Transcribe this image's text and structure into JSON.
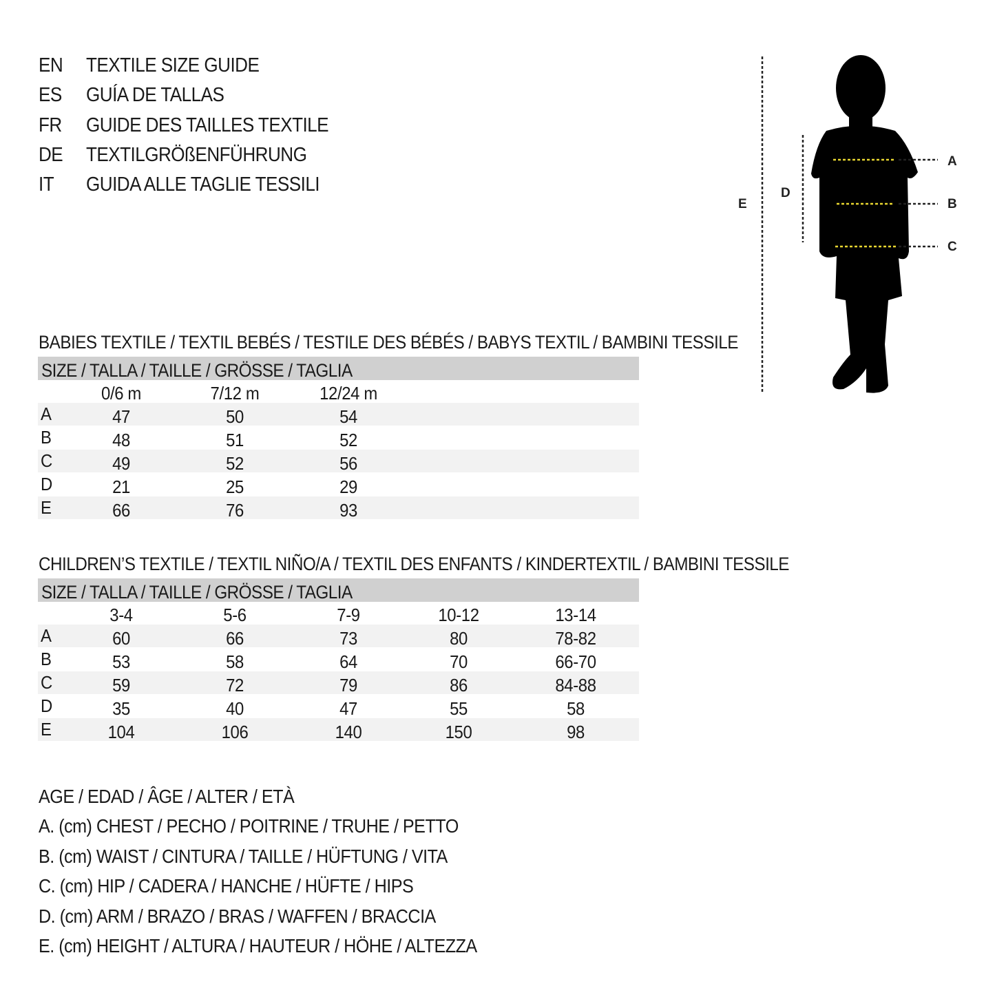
{
  "titles": [
    {
      "code": "EN",
      "text": "TEXTILE SIZE GUIDE"
    },
    {
      "code": "ES",
      "text": "GUÍA DE TALLAS"
    },
    {
      "code": "FR",
      "text": "GUIDE DES TAILLES TEXTILE"
    },
    {
      "code": "DE",
      "text": "TEXTILGRÖßENFÜHRUNG"
    },
    {
      "code": "IT",
      "text": "GUIDA ALLE TAGLIE TESSILI"
    }
  ],
  "diagram": {
    "labels": {
      "A": "A",
      "B": "B",
      "C": "C",
      "D": "D",
      "E": "E"
    },
    "colors": {
      "silhouette": "#000000",
      "measure_line": "#e8d630"
    }
  },
  "babies": {
    "heading": "BABIES TEXTILE / TEXTIL BEBÉS / TESTILE DES BÉBÉS / BABYS TEXTIL / BAMBINI TESSILE",
    "size_header": "SIZE / TALLA / TAILLE / GRÖSSE / TAGLIA",
    "columns": [
      "0/6 m",
      "7/12 m",
      "12/24 m"
    ],
    "rows": [
      {
        "label": "A",
        "values": [
          "47",
          "50",
          "54"
        ]
      },
      {
        "label": "B",
        "values": [
          "48",
          "51",
          "52"
        ]
      },
      {
        "label": "C",
        "values": [
          "49",
          "52",
          "56"
        ]
      },
      {
        "label": "D",
        "values": [
          "21",
          "25",
          "29"
        ]
      },
      {
        "label": "E",
        "values": [
          "66",
          "76",
          "93"
        ]
      }
    ]
  },
  "children": {
    "heading": "CHILDREN’S TEXTILE / TEXTIL NIÑO/A / TEXTIL DES ENFANTS / KINDERTEXTIL / BAMBINI TESSILE",
    "size_header": "SIZE / TALLA / TAILLE / GRÖSSE / TAGLIA",
    "columns": [
      "3-4",
      "5-6",
      "7-9",
      "10-12",
      "13-14"
    ],
    "rows": [
      {
        "label": "A",
        "values": [
          "60",
          "66",
          "73",
          "80",
          "78-82"
        ]
      },
      {
        "label": "B",
        "values": [
          "53",
          "58",
          "64",
          "70",
          "66-70"
        ]
      },
      {
        "label": "C",
        "values": [
          "59",
          "72",
          "79",
          "86",
          "84-88"
        ]
      },
      {
        "label": "D",
        "values": [
          "35",
          "40",
          "47",
          "55",
          "58"
        ]
      },
      {
        "label": "E",
        "values": [
          "104",
          "106",
          "140",
          "150",
          "98"
        ]
      }
    ]
  },
  "legend": [
    "AGE / EDAD / ÂGE / ALTER / ETÀ",
    "A. (cm) CHEST / PECHO / POITRINE / TRUHE / PETTO",
    "B. (cm) WAIST / CINTURA / TAILLE / HÜFTUNG / VITA",
    "C. (cm) HIP / CADERA / HANCHE / HÜFTE / HIPS",
    "D. (cm) ARM / BRAZO / BRAS / WAFFEN / BRACCIA",
    "E. (cm) HEIGHT / ALTURA / HAUTEUR / HÖHE / ALTEZZA"
  ]
}
